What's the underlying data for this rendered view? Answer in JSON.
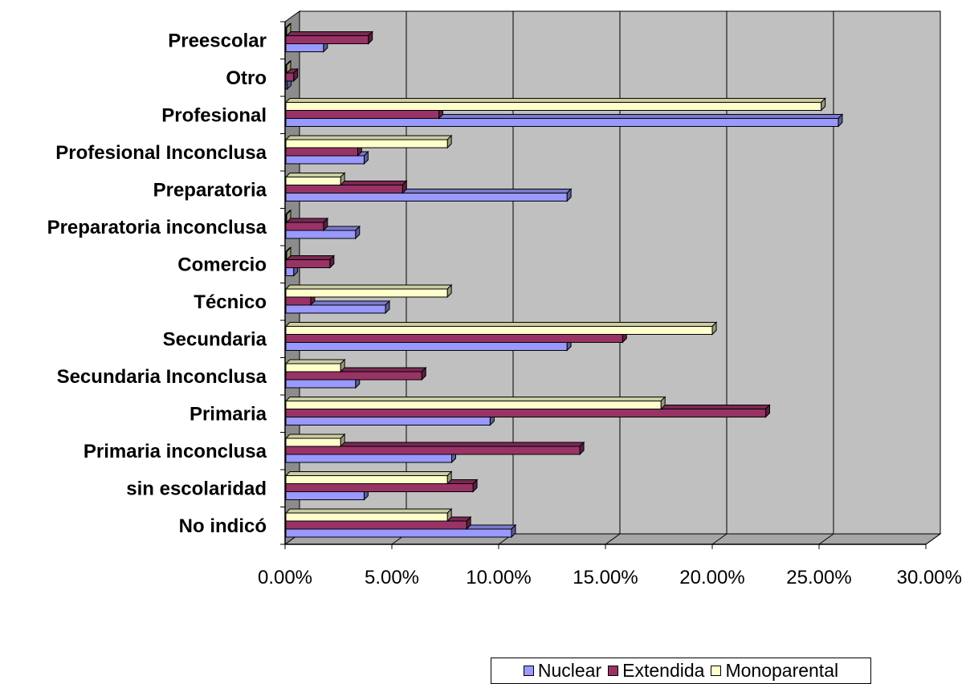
{
  "chart_data": {
    "type": "bar",
    "orientation": "horizontal",
    "categories": [
      "No indicó",
      "sin escolaridad",
      "Primaria inconclusa",
      "Primaria",
      "Secundaria Inconclusa",
      "Secundaria",
      "Técnico",
      "Comercio",
      "Preparatoria inconclusa",
      "Preparatoria",
      "Profesional Inconclusa",
      "Profesional",
      "Otro",
      "Preescolar"
    ],
    "series": [
      {
        "name": "Nuclear",
        "color": "#9999FF",
        "values": [
          10.6,
          3.7,
          7.8,
          9.6,
          3.3,
          13.2,
          4.7,
          0.4,
          3.3,
          13.2,
          3.7,
          25.9,
          0.1,
          1.8
        ]
      },
      {
        "name": "Extendida",
        "color": "#993366",
        "values": [
          8.5,
          8.8,
          13.8,
          22.5,
          6.4,
          15.8,
          1.2,
          2.1,
          1.8,
          5.5,
          3.4,
          7.2,
          0.4,
          3.9
        ]
      },
      {
        "name": "Monoparental",
        "color": "#FFFFCC",
        "values": [
          7.6,
          7.6,
          2.6,
          17.6,
          2.6,
          20.0,
          7.6,
          0,
          0,
          2.6,
          7.6,
          25.1,
          0,
          0
        ]
      }
    ],
    "xticks": [
      "0.00%",
      "5.00%",
      "10.00%",
      "15.00%",
      "20.00%",
      "25.00%",
      "30.00%"
    ],
    "xlim": [
      0,
      30
    ],
    "title": "",
    "xlabel": "",
    "ylabel": "",
    "grid": true,
    "plot_background": "#C0C0C0",
    "legend_position": "bottom-right"
  }
}
